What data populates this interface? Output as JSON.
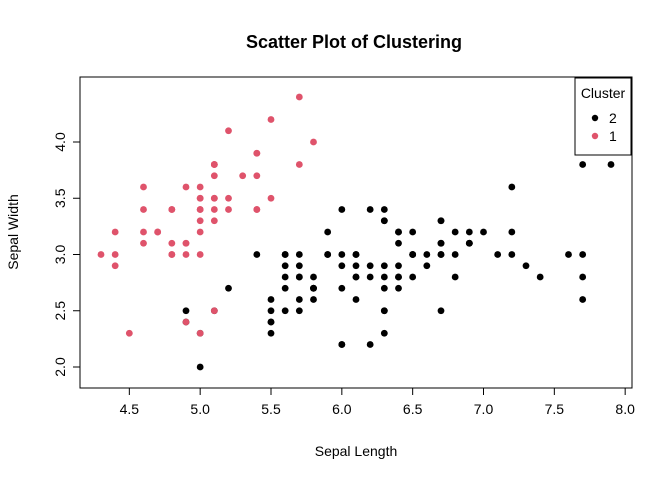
{
  "chart_data": {
    "type": "scatter",
    "title": "Scatter Plot of Clustering",
    "xlabel": "Sepal Length",
    "ylabel": "Sepal Width",
    "xlim": [
      4.3,
      7.9
    ],
    "ylim": [
      2.0,
      4.4
    ],
    "xticks": [
      "4.5",
      "5.0",
      "5.5",
      "6.0",
      "6.5",
      "7.0",
      "7.5",
      "8.0"
    ],
    "yticks": [
      "2.0",
      "2.5",
      "3.0",
      "3.5",
      "4.0"
    ],
    "grid": false,
    "legend": {
      "title": "Cluster",
      "position": "top-right"
    },
    "series": [
      {
        "name": "2",
        "color": "#000000",
        "points": [
          [
            7.0,
            3.2
          ],
          [
            6.4,
            3.2
          ],
          [
            6.9,
            3.1
          ],
          [
            5.5,
            2.3
          ],
          [
            6.5,
            2.8
          ],
          [
            5.7,
            2.8
          ],
          [
            6.3,
            3.3
          ],
          [
            4.9,
            2.4
          ],
          [
            6.6,
            2.9
          ],
          [
            5.2,
            2.7
          ],
          [
            5.0,
            2.0
          ],
          [
            5.9,
            3.0
          ],
          [
            6.0,
            2.2
          ],
          [
            6.1,
            2.9
          ],
          [
            5.6,
            2.9
          ],
          [
            6.7,
            3.1
          ],
          [
            5.6,
            3.0
          ],
          [
            5.8,
            2.7
          ],
          [
            6.2,
            2.2
          ],
          [
            5.6,
            2.5
          ],
          [
            5.9,
            3.2
          ],
          [
            6.1,
            2.8
          ],
          [
            6.3,
            2.5
          ],
          [
            6.1,
            2.8
          ],
          [
            6.4,
            2.9
          ],
          [
            6.6,
            3.0
          ],
          [
            6.8,
            2.8
          ],
          [
            6.7,
            3.0
          ],
          [
            6.0,
            2.9
          ],
          [
            5.7,
            2.6
          ],
          [
            5.5,
            2.4
          ],
          [
            5.5,
            2.4
          ],
          [
            5.8,
            2.7
          ],
          [
            6.0,
            2.7
          ],
          [
            5.4,
            3.0
          ],
          [
            6.0,
            3.4
          ],
          [
            6.7,
            3.1
          ],
          [
            6.3,
            2.3
          ],
          [
            5.6,
            3.0
          ],
          [
            5.5,
            2.5
          ],
          [
            5.5,
            2.6
          ],
          [
            6.1,
            3.0
          ],
          [
            5.8,
            2.6
          ],
          [
            5.0,
            2.3
          ],
          [
            5.6,
            2.7
          ],
          [
            5.7,
            3.0
          ],
          [
            5.7,
            2.9
          ],
          [
            6.2,
            2.9
          ],
          [
            5.1,
            2.5
          ],
          [
            5.7,
            2.8
          ],
          [
            6.3,
            3.3
          ],
          [
            5.8,
            2.7
          ],
          [
            7.1,
            3.0
          ],
          [
            6.3,
            2.9
          ],
          [
            6.5,
            3.0
          ],
          [
            7.6,
            3.0
          ],
          [
            4.9,
            2.5
          ],
          [
            7.3,
            2.9
          ],
          [
            6.7,
            2.5
          ],
          [
            7.2,
            3.6
          ],
          [
            6.5,
            3.2
          ],
          [
            6.4,
            2.7
          ],
          [
            6.8,
            3.0
          ],
          [
            5.7,
            2.5
          ],
          [
            5.8,
            2.8
          ],
          [
            6.4,
            3.2
          ],
          [
            6.5,
            3.0
          ],
          [
            7.7,
            3.8
          ],
          [
            7.7,
            2.6
          ],
          [
            6.0,
            2.2
          ],
          [
            6.9,
            3.2
          ],
          [
            5.6,
            2.8
          ],
          [
            7.7,
            2.8
          ],
          [
            6.3,
            2.7
          ],
          [
            6.7,
            3.3
          ],
          [
            7.2,
            3.2
          ],
          [
            6.2,
            2.8
          ],
          [
            6.1,
            3.0
          ],
          [
            6.4,
            2.8
          ],
          [
            7.2,
            3.0
          ],
          [
            7.4,
            2.8
          ],
          [
            7.9,
            3.8
          ],
          [
            6.4,
            2.8
          ],
          [
            6.3,
            2.8
          ],
          [
            6.1,
            2.6
          ],
          [
            7.7,
            3.0
          ],
          [
            6.3,
            3.4
          ],
          [
            6.4,
            3.1
          ],
          [
            6.0,
            3.0
          ],
          [
            6.9,
            3.1
          ],
          [
            6.7,
            3.1
          ],
          [
            6.9,
            3.1
          ],
          [
            5.8,
            2.7
          ],
          [
            6.8,
            3.2
          ],
          [
            6.7,
            3.3
          ],
          [
            6.7,
            3.0
          ],
          [
            6.3,
            2.5
          ],
          [
            6.5,
            3.0
          ],
          [
            6.2,
            3.4
          ],
          [
            5.9,
            3.0
          ]
        ]
      },
      {
        "name": "1",
        "color": "#DF536B",
        "points": [
          [
            5.1,
            3.5
          ],
          [
            4.9,
            3.0
          ],
          [
            4.7,
            3.2
          ],
          [
            4.6,
            3.1
          ],
          [
            5.0,
            3.6
          ],
          [
            5.4,
            3.9
          ],
          [
            4.6,
            3.4
          ],
          [
            5.0,
            3.4
          ],
          [
            4.4,
            2.9
          ],
          [
            4.9,
            3.1
          ],
          [
            5.4,
            3.7
          ],
          [
            4.8,
            3.4
          ],
          [
            4.8,
            3.0
          ],
          [
            4.3,
            3.0
          ],
          [
            5.8,
            4.0
          ],
          [
            5.7,
            4.4
          ],
          [
            5.4,
            3.9
          ],
          [
            5.1,
            3.5
          ],
          [
            5.7,
            3.8
          ],
          [
            5.1,
            3.8
          ],
          [
            5.4,
            3.4
          ],
          [
            5.1,
            3.7
          ],
          [
            4.6,
            3.6
          ],
          [
            5.1,
            3.3
          ],
          [
            4.8,
            3.4
          ],
          [
            5.0,
            3.0
          ],
          [
            5.0,
            3.4
          ],
          [
            5.2,
            3.5
          ],
          [
            5.2,
            3.4
          ],
          [
            4.7,
            3.2
          ],
          [
            4.8,
            3.1
          ],
          [
            5.4,
            3.4
          ],
          [
            5.2,
            4.1
          ],
          [
            5.5,
            4.2
          ],
          [
            4.9,
            3.1
          ],
          [
            5.0,
            3.2
          ],
          [
            5.5,
            3.5
          ],
          [
            4.9,
            3.6
          ],
          [
            4.4,
            3.0
          ],
          [
            5.1,
            3.4
          ],
          [
            5.0,
            3.5
          ],
          [
            4.5,
            2.3
          ],
          [
            4.4,
            3.2
          ],
          [
            5.0,
            3.5
          ],
          [
            5.1,
            3.8
          ],
          [
            4.8,
            3.0
          ],
          [
            5.1,
            3.8
          ],
          [
            4.6,
            3.2
          ],
          [
            5.3,
            3.7
          ],
          [
            5.0,
            3.3
          ],
          [
            4.9,
            2.4
          ],
          [
            5.0,
            2.3
          ],
          [
            5.1,
            2.5
          ]
        ]
      }
    ]
  }
}
